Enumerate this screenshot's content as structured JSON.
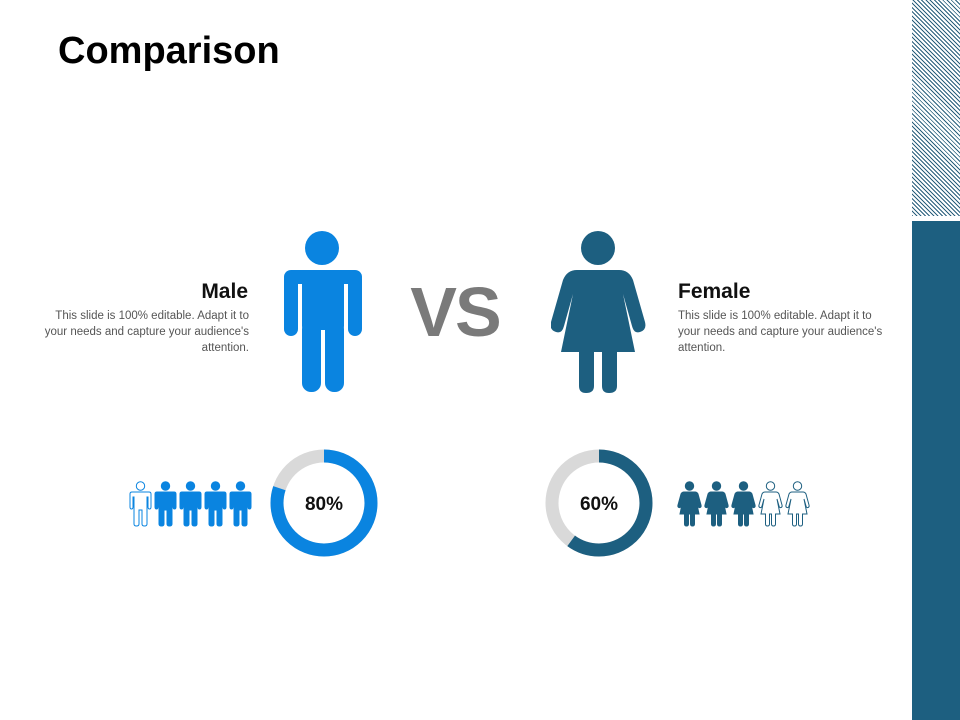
{
  "slide": {
    "title": "Comparison",
    "vs_label": "VS"
  },
  "male": {
    "heading": "Male",
    "description": "This slide is 100% editable. Adapt it to your needs and capture your audience's attention.",
    "percent_label": "80%",
    "percent_value": 0.8,
    "people_icons_filled": 4,
    "people_icons_total": 5,
    "color": "#0a84e0"
  },
  "female": {
    "heading": "Female",
    "description": "This slide is 100% editable. Adapt it to your needs and capture your audience's attention.",
    "percent_label": "60%",
    "percent_value": 0.6,
    "people_icons_filled": 3,
    "people_icons_total": 5,
    "color": "#1d5f80"
  },
  "colors": {
    "donut_track": "#d9d9d9",
    "vs_text": "#7a7a7a",
    "side_panel": "#1d5f80"
  },
  "icons": [
    "male-figure-icon",
    "female-figure-icon"
  ]
}
